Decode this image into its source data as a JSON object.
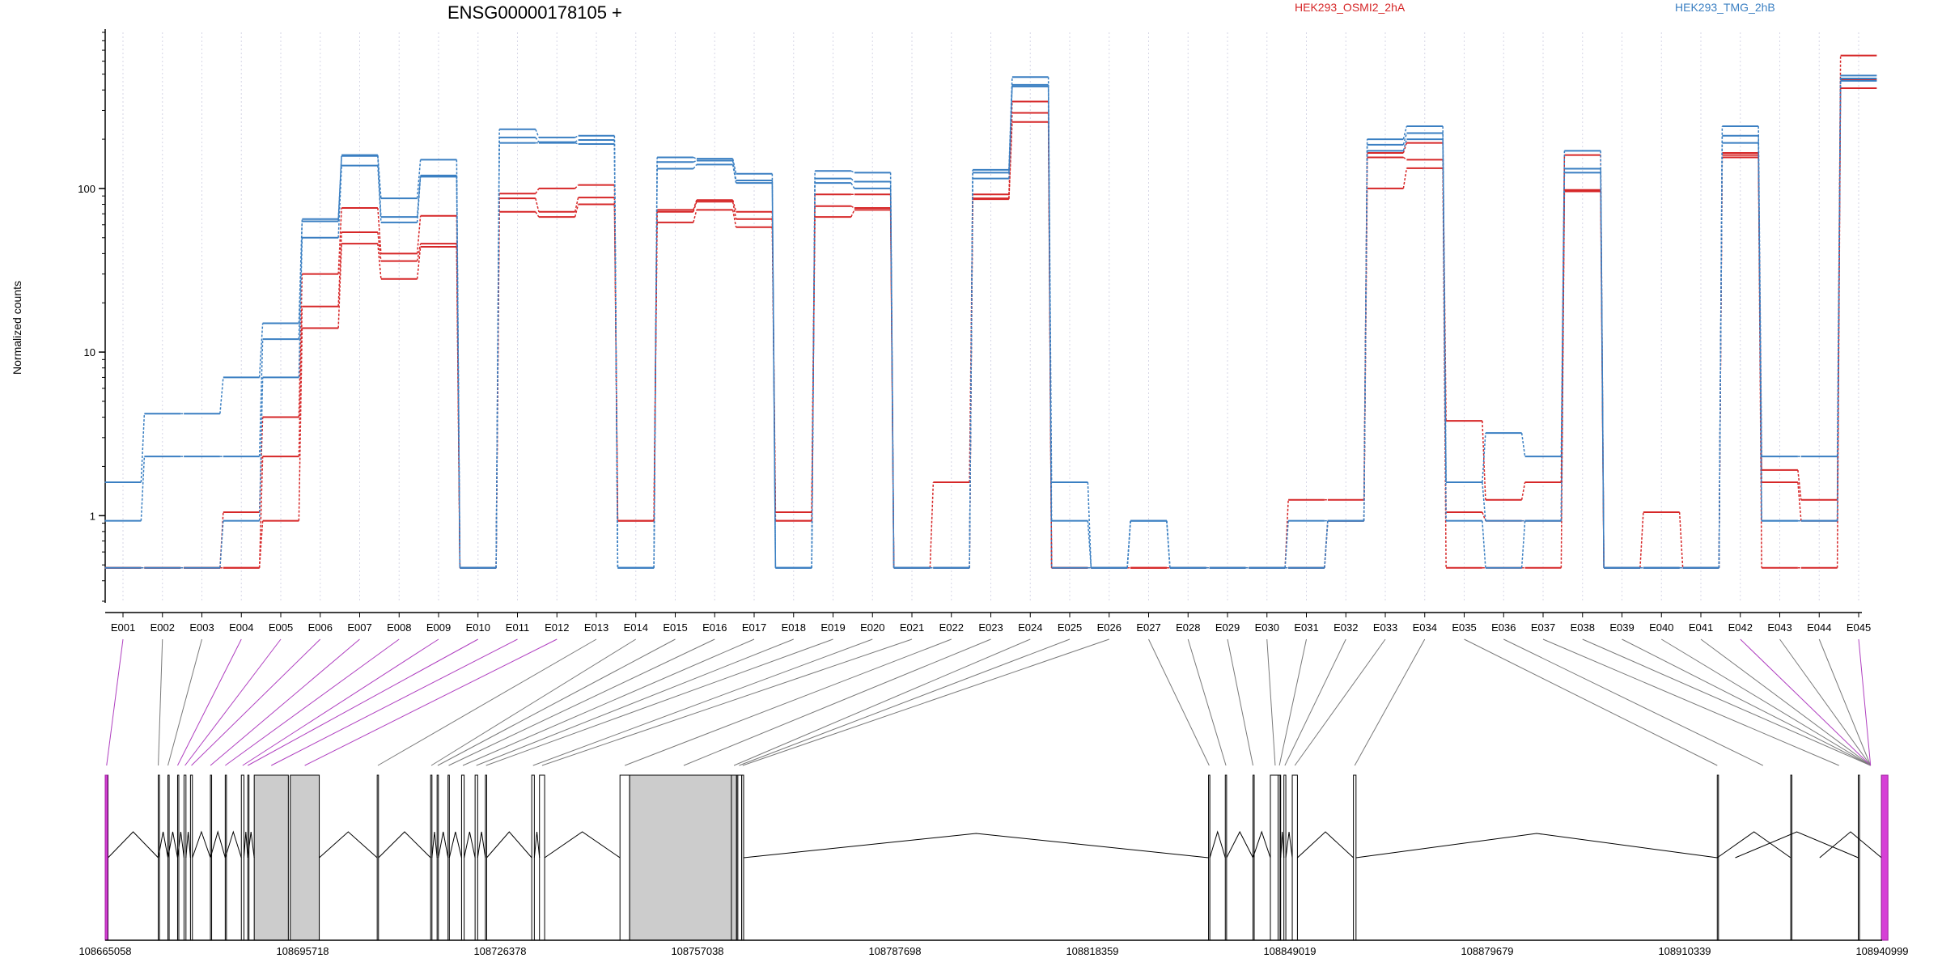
{
  "chart_data": {
    "type": "line",
    "title": "ENSG00000178105 +",
    "ylabel": "Normalized counts",
    "yscale": "log",
    "ylim": [
      0.3,
      900
    ],
    "yticks": [
      1,
      10,
      100
    ],
    "ytick_labels": [
      "1",
      "10",
      "100"
    ],
    "legend": [
      {
        "name": "HEK293_OSMI2_2hA",
        "color": "#d62728"
      },
      {
        "name": "HEK293_TMG_2hB",
        "color": "#3a7fc2"
      }
    ],
    "categories": [
      "E001",
      "E002",
      "E003",
      "E004",
      "E005",
      "E006",
      "E007",
      "E008",
      "E009",
      "E010",
      "E011",
      "E012",
      "E013",
      "E014",
      "E015",
      "E016",
      "E017",
      "E018",
      "E019",
      "E020",
      "E021",
      "E022",
      "E023",
      "E024",
      "E025",
      "E026",
      "E027",
      "E028",
      "E029",
      "E030",
      "E031",
      "E032",
      "E033",
      "E034",
      "E035",
      "E036",
      "E037",
      "E038",
      "E039",
      "E040",
      "E041",
      "E042",
      "E043",
      "E044",
      "E045"
    ],
    "series": [
      {
        "group": "HEK293_OSMI2_2hA",
        "color": "#d62728",
        "values": [
          0.48,
          0.48,
          0.48,
          1.05,
          4.0,
          30,
          76,
          40,
          68,
          0.48,
          93,
          100,
          105,
          0.93,
          74,
          85,
          72,
          1.05,
          92,
          92,
          0.48,
          1.6,
          92,
          340,
          0.48,
          0.48,
          0.48,
          0.48,
          0.48,
          0.48,
          1.25,
          1.25,
          165,
          190,
          3.8,
          1.25,
          1.6,
          160,
          0.48,
          1.05,
          0.48,
          160,
          1.9,
          1.25,
          650
        ]
      },
      {
        "group": "HEK293_OSMI2_2hA",
        "color": "#d62728",
        "values": [
          0.48,
          0.48,
          0.48,
          0.48,
          2.3,
          19,
          54,
          36,
          46,
          0.48,
          87,
          72,
          88,
          0.93,
          72,
          83,
          65,
          0.93,
          78,
          76,
          0.48,
          0.48,
          87,
          290,
          0.48,
          0.48,
          0.48,
          0.48,
          0.48,
          0.48,
          0.48,
          0.93,
          155,
          150,
          1.05,
          0.93,
          0.93,
          98,
          0.48,
          0.48,
          0.48,
          165,
          1.6,
          0.93,
          460
        ]
      },
      {
        "group": "HEK293_OSMI2_2hA",
        "color": "#d62728",
        "values": [
          0.48,
          0.48,
          0.48,
          0.48,
          0.93,
          14,
          46,
          28,
          44,
          0.48,
          72,
          67,
          80,
          0.93,
          62,
          74,
          58,
          0.93,
          67,
          74,
          0.48,
          0.48,
          86,
          255,
          0.48,
          0.48,
          0.48,
          0.48,
          0.48,
          0.48,
          0.48,
          0.93,
          100,
          133,
          0.48,
          0.48,
          0.48,
          96,
          0.48,
          0.48,
          0.48,
          155,
          0.48,
          0.48,
          410
        ]
      },
      {
        "group": "HEK293_TMG_2hB",
        "color": "#3a7fc2",
        "values": [
          1.6,
          4.2,
          4.2,
          7.0,
          15,
          65,
          160,
          87,
          150,
          0.48,
          230,
          205,
          210,
          0.48,
          155,
          152,
          123,
          0.48,
          128,
          125,
          0.48,
          0.48,
          130,
          480,
          1.6,
          0.48,
          0.93,
          0.48,
          0.48,
          0.48,
          0.48,
          0.93,
          200,
          240,
          1.6,
          3.2,
          2.3,
          170,
          0.48,
          0.48,
          0.48,
          240,
          2.3,
          2.3,
          490
        ]
      },
      {
        "group": "HEK293_TMG_2hB",
        "color": "#3a7fc2",
        "values": [
          0.93,
          2.3,
          2.3,
          2.3,
          12,
          63,
          158,
          67,
          120,
          0.48,
          205,
          192,
          198,
          0.48,
          145,
          148,
          112,
          0.48,
          115,
          110,
          0.48,
          0.48,
          125,
          430,
          0.93,
          0.48,
          0.93,
          0.48,
          0.48,
          0.48,
          0.93,
          0.93,
          185,
          218,
          1.6,
          0.93,
          0.93,
          132,
          0.48,
          0.48,
          0.48,
          210,
          0.93,
          0.93,
          470
        ]
      },
      {
        "group": "HEK293_TMG_2hB",
        "color": "#3a7fc2",
        "values": [
          0.48,
          0.48,
          0.48,
          0.93,
          7.0,
          50,
          138,
          62,
          118,
          0.48,
          190,
          190,
          187,
          0.48,
          132,
          140,
          108,
          0.48,
          108,
          100,
          0.48,
          0.48,
          115,
          420,
          0.48,
          0.48,
          0.93,
          0.48,
          0.48,
          0.48,
          0.48,
          0.93,
          170,
          200,
          0.93,
          0.48,
          0.93,
          125,
          0.48,
          0.48,
          0.48,
          190,
          0.93,
          0.93,
          455
        ]
      }
    ],
    "gene_model": {
      "coord_ticks": [
        "108665058",
        "108695718",
        "108726378",
        "108757038",
        "108787698",
        "108818359",
        "108849019",
        "108879679",
        "108910339",
        "108940999"
      ],
      "coord_range": [
        108665058,
        108940999
      ],
      "exon_starts": [
        108665058,
        108673300,
        108674800,
        108676300,
        108677300,
        108678300,
        108681400,
        108683700,
        108686200,
        108687200,
        108688200,
        108693800,
        108707300,
        108715600,
        108716600,
        108718300,
        108720400,
        108722500,
        108724100,
        108731300,
        108732500,
        108745000,
        108746500,
        108762300,
        108763100,
        108763900,
        108836400,
        108839000,
        108843300,
        108846000,
        108847200,
        108848100,
        108849400,
        108858900,
        108915400,
        108926800,
        108937300,
        108940900
      ],
      "exon_ends": [
        108665500,
        108673300,
        108674800,
        108676300,
        108677600,
        108678600,
        108681400,
        108683700,
        108686600,
        108687200,
        108693500,
        108698300,
        108707500,
        108715800,
        108716800,
        108718500,
        108720800,
        108722900,
        108724300,
        108731700,
        108733300,
        108746500,
        108763300,
        108763100,
        108763900,
        108764200,
        108836600,
        108839200,
        108843300,
        108847500,
        108847600,
        108848400,
        108850200,
        108859300,
        108915400,
        108918200,
        108931300,
        108937500
      ]
    }
  }
}
